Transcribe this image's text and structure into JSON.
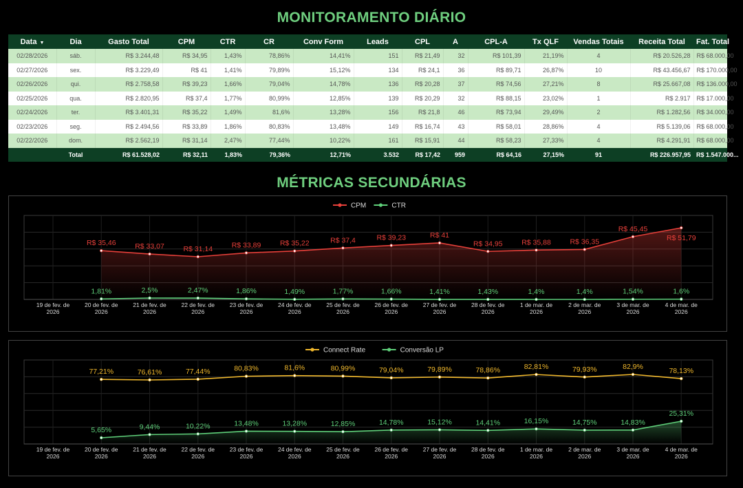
{
  "titles": {
    "main": "MONITORAMENTO DIÁRIO",
    "secondary": "MÉTRICAS SECUNDÁRIAS"
  },
  "table": {
    "headers": [
      "Data",
      "Dia",
      "Gasto Total",
      "CPM",
      "CTR",
      "CR",
      "Conv Form",
      "Leads",
      "CPL",
      "A",
      "CPL-A",
      "Tx QLF",
      "Vendas Totais",
      "Receita Total",
      "Fat. Total"
    ],
    "sort_icon": "sort-down-triangle",
    "rows": [
      [
        "02/28/2026",
        "sáb.",
        "R$ 3.244,48",
        "R$ 34,95",
        "1,43%",
        "78,86%",
        "14,41%",
        "151",
        "R$ 21,49",
        "32",
        "R$ 101,39",
        "21,19%",
        "4",
        "R$ 20.526,28",
        "R$ 68.000,00"
      ],
      [
        "02/27/2026",
        "sex.",
        "R$ 3.229,49",
        "R$ 41",
        "1,41%",
        "79,89%",
        "15,12%",
        "134",
        "R$ 24,1",
        "36",
        "R$ 89,71",
        "26,87%",
        "10",
        "R$ 43.456,67",
        "R$ 170.000,00"
      ],
      [
        "02/26/2026",
        "qui.",
        "R$ 2.758,58",
        "R$ 39,23",
        "1,66%",
        "79,04%",
        "14,78%",
        "136",
        "R$ 20,28",
        "37",
        "R$ 74,56",
        "27,21%",
        "8",
        "R$ 25.667,08",
        "R$ 136.000,00"
      ],
      [
        "02/25/2026",
        "qua.",
        "R$ 2.820,95",
        "R$ 37,4",
        "1,77%",
        "80,99%",
        "12,85%",
        "139",
        "R$ 20,29",
        "32",
        "R$ 88,15",
        "23,02%",
        "1",
        "R$ 2.917",
        "R$ 17.000,00"
      ],
      [
        "02/24/2026",
        "ter.",
        "R$ 3.401,31",
        "R$ 35,22",
        "1,49%",
        "81,6%",
        "13,28%",
        "156",
        "R$ 21,8",
        "46",
        "R$ 73,94",
        "29,49%",
        "2",
        "R$ 1.282,56",
        "R$ 34.000,00"
      ],
      [
        "02/23/2026",
        "seg.",
        "R$ 2.494,56",
        "R$ 33,89",
        "1,86%",
        "80,83%",
        "13,48%",
        "149",
        "R$ 16,74",
        "43",
        "R$ 58,01",
        "28,86%",
        "4",
        "R$ 5.139,06",
        "R$ 68.000,00"
      ],
      [
        "02/22/2026",
        "dom.",
        "R$ 2.562,19",
        "R$ 31,14",
        "2,47%",
        "77,44%",
        "10,22%",
        "161",
        "R$ 15,91",
        "44",
        "R$ 58,23",
        "27,33%",
        "4",
        "R$ 4.291,91",
        "R$ 68.000,00"
      ]
    ],
    "totals": [
      "",
      "Total",
      "R$ 61.528,02",
      "R$ 32,11",
      "1,83%",
      "79,36%",
      "12,71%",
      "3.532",
      "R$ 17,42",
      "959",
      "R$ 64,16",
      "27,15%",
      "91",
      "R$ 226.957,95",
      "R$ 1.547.000..."
    ]
  },
  "chart_data": [
    {
      "type": "line",
      "categories": [
        [
          "19 de fev. de",
          "2026"
        ],
        [
          "20 de fev. de",
          "2026"
        ],
        [
          "21 de fev. de",
          "2026"
        ],
        [
          "22 de fev. de",
          "2026"
        ],
        [
          "23 de fev. de",
          "2026"
        ],
        [
          "24 de fev. de",
          "2026"
        ],
        [
          "25 de fev. de",
          "2026"
        ],
        [
          "26 de fev. de",
          "2026"
        ],
        [
          "27 de fev. de",
          "2026"
        ],
        [
          "28 de fev. de",
          "2026"
        ],
        [
          "1 de mar. de",
          "2026"
        ],
        [
          "2 de mar. de",
          "2026"
        ],
        [
          "3 de mar. de",
          "2026"
        ],
        [
          "4 de mar. de",
          "2026"
        ]
      ],
      "legend_position": "top-center",
      "series": [
        {
          "name": "CPM",
          "color": "#e8403a",
          "axis": "left",
          "values": [
            null,
            35.46,
            33.07,
            31.14,
            33.89,
            35.22,
            37.4,
            39.23,
            41,
            34.95,
            35.88,
            36.35,
            45.45,
            51.79
          ],
          "labels": [
            "",
            "R$ 35,46",
            "R$ 33,07",
            "R$ 31,14",
            "R$ 33,89",
            "R$ 35,22",
            "R$ 37,4",
            "R$ 39,23",
            "R$ 41",
            "R$ 34,95",
            "R$ 35,88",
            "R$ 36,35",
            "R$ 45,45",
            "R$ 51,79"
          ]
        },
        {
          "name": "CTR",
          "color": "#5fd07a",
          "axis": "right",
          "values": [
            null,
            1.81,
            2.5,
            2.47,
            1.86,
            1.49,
            1.77,
            1.66,
            1.41,
            1.43,
            1.4,
            1.4,
            1.54,
            1.6
          ],
          "labels": [
            "",
            "1,81%",
            "2,5%",
            "2,47%",
            "1,86%",
            "1,49%",
            "1,77%",
            "1,66%",
            "1,41%",
            "1,43%",
            "1,4%",
            "1,4%",
            "1,54%",
            "1,6%"
          ]
        }
      ],
      "grid": true
    },
    {
      "type": "line",
      "categories": [
        [
          "19 de fev. de",
          "2026"
        ],
        [
          "20 de fev. de",
          "2026"
        ],
        [
          "21 de fev. de",
          "2026"
        ],
        [
          "22 de fev. de",
          "2026"
        ],
        [
          "23 de fev. de",
          "2026"
        ],
        [
          "24 de fev. de",
          "2026"
        ],
        [
          "25 de fev. de",
          "2026"
        ],
        [
          "26 de fev. de",
          "2026"
        ],
        [
          "27 de fev. de",
          "2026"
        ],
        [
          "28 de fev. de",
          "2026"
        ],
        [
          "1 de mar. de",
          "2026"
        ],
        [
          "2 de mar. de",
          "2026"
        ],
        [
          "3 de mar. de",
          "2026"
        ],
        [
          "4 de mar. de",
          "2026"
        ]
      ],
      "legend_position": "top-center",
      "series": [
        {
          "name": "Connect Rate",
          "color": "#f2b92c",
          "axis": "left",
          "values": [
            null,
            77.21,
            76.61,
            77.44,
            80.83,
            81.6,
            80.99,
            79.04,
            79.89,
            78.86,
            82.81,
            79.93,
            82.9,
            78.13
          ],
          "labels": [
            "",
            "77,21%",
            "76,61%",
            "77,44%",
            "80,83%",
            "81,6%",
            "80,99%",
            "79,04%",
            "79,89%",
            "78,86%",
            "82,81%",
            "79,93%",
            "82,9%",
            "78,13%"
          ]
        },
        {
          "name": "Conversão LP",
          "color": "#5fd07a",
          "axis": "right",
          "values": [
            null,
            5.65,
            9.44,
            10.22,
            13.48,
            13.28,
            12.85,
            14.78,
            15.12,
            14.41,
            16.15,
            14.75,
            14.83,
            25.31
          ],
          "labels": [
            "",
            "5,65%",
            "9,44%",
            "10,22%",
            "13,48%",
            "13,28%",
            "12,85%",
            "14,78%",
            "15,12%",
            "14,41%",
            "16,15%",
            "14,75%",
            "14,83%",
            "25,31%"
          ]
        }
      ],
      "grid": true
    }
  ]
}
